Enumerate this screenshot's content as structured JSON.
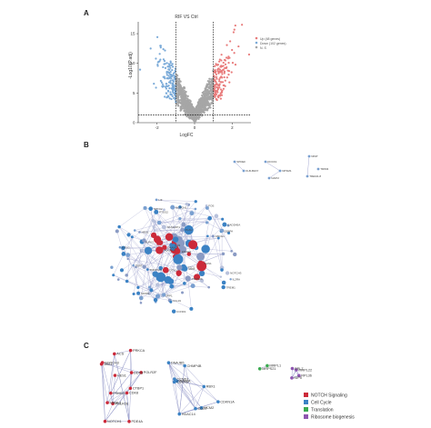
{
  "panels": {
    "a": "A",
    "b": "B",
    "c": "C"
  },
  "chart_data": {
    "type": "scatter",
    "title": "RIF VS Ctrl",
    "xlabel": "LogFC",
    "ylabel": "-Log10(P.adj)",
    "xlim": [
      -3,
      3
    ],
    "ylim": [
      0,
      17
    ],
    "x_ticks": [
      "-2",
      "0",
      "2"
    ],
    "y_ticks": [
      "0",
      "5",
      "10",
      "15"
    ],
    "thresholds": {
      "logfc": [
        -1,
        1
      ],
      "neg_log10_padj": 1.3
    },
    "grid": false,
    "legend_position": "top-right",
    "series": [
      {
        "name": "Up (48 genes)",
        "color": "#e87c7c"
      },
      {
        "name": "Down (102 genes)",
        "color": "#7aaad8"
      },
      {
        "name": "N. S",
        "color": "#a6a6a6"
      }
    ]
  },
  "network_b": {
    "labels": [
      "DTX1",
      "SFRP1",
      "HES1",
      "JAG1",
      "NOTCH1",
      "CCND1",
      "ABCG1",
      "IL2RA",
      "NPTX2",
      "NOTCH3",
      "RASGRP1",
      "ALPK3",
      "TERT",
      "CEBPA",
      "CDKN2A",
      "TREM1",
      "TNFRSF9",
      "IL33",
      "CCL19",
      "PLAU",
      "DAAM2",
      "TTC3",
      "ENAH4",
      "PTGS2",
      "GAS1",
      "KITLG",
      "LIF",
      "ADGRG6",
      "SPP1",
      "FOS",
      "GADD45A"
    ],
    "small_labels": [
      "SPDEF",
      "KLB-BFAT",
      "DOCK1",
      "NPSM1",
      "NAIP2",
      "NPAT",
      "TRIM3",
      "TREM1-8"
    ]
  },
  "network_c": {
    "group1": [
      "NOTCH1",
      "DDX3",
      "PDE4A",
      "MAML1",
      "ACS",
      "NOTCH3",
      "PRKCA",
      "HES1",
      "CTBP1",
      "CDK8",
      "POLR2E",
      "POLR2F",
      "PSMD3",
      "JAG1"
    ],
    "group2": [
      "CCND1",
      "TOP2A",
      "CDC7",
      "DNAJB5",
      "RBX1",
      "MCM2",
      "CDKN1A",
      "CDC45",
      "HDAC14",
      "CHMP4B"
    ],
    "group3": [
      "MRPL1",
      "MRPS21"
    ],
    "group4": [
      "NIP5",
      "RPL36",
      "MRPL22",
      "RPL7"
    ]
  },
  "legend_c": [
    {
      "label": "NOTCH Signaling",
      "color": "#cc2a3a"
    },
    {
      "label": "Cell Cycle",
      "color": "#3b82c4"
    },
    {
      "label": "Translation",
      "color": "#3aaa50"
    },
    {
      "label": "Ribosome biogenesis",
      "color": "#8e56b0"
    }
  ]
}
